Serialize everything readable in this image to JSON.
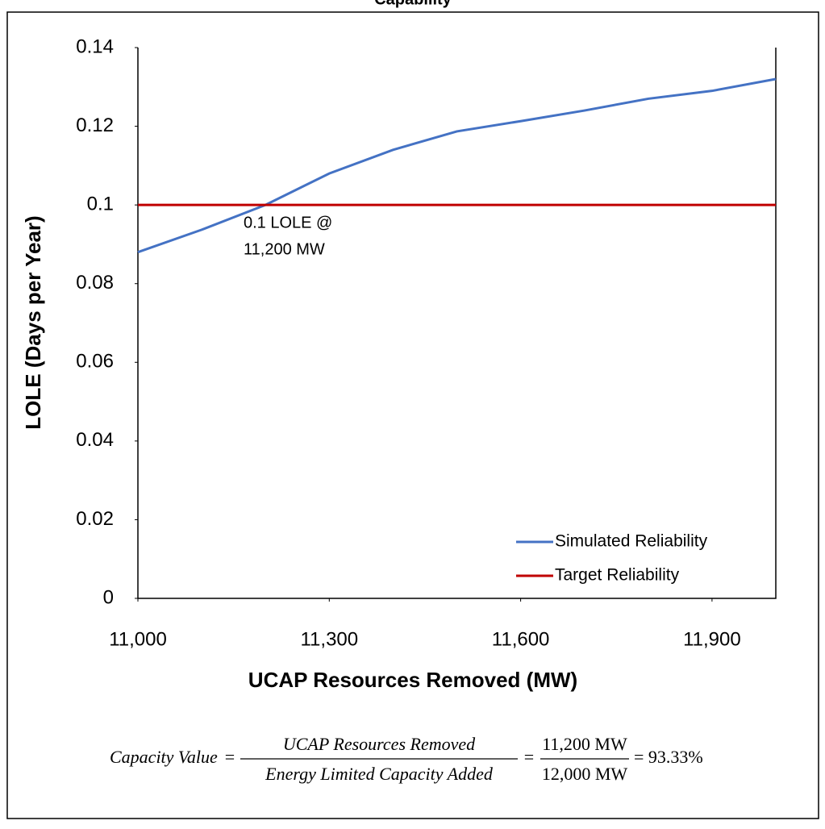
{
  "chart_data": {
    "type": "line",
    "title": "Capability",
    "x_label": "UCAP Resources Removed (MW)",
    "y_label": "LOLE (Days per Year)",
    "xlim": [
      11000,
      12000
    ],
    "xticks": [
      {
        "value": 11000,
        "label": "11,000"
      },
      {
        "value": 11300,
        "label": "11,300"
      },
      {
        "value": 11600,
        "label": "11,600"
      },
      {
        "value": 11900,
        "label": "11,900"
      }
    ],
    "ylim": [
      0,
      0.14
    ],
    "yticks": [
      0,
      0.02,
      0.04,
      0.06,
      0.08,
      0.1,
      0.12,
      0.14
    ],
    "legend": "bottom-right",
    "series": [
      {
        "name": "Simulated Reliability",
        "color": "#4472c4",
        "x": [
          11000,
          11100,
          11200,
          11300,
          11400,
          11500,
          11600,
          11700,
          11800,
          11900,
          12000
        ],
        "values": [
          0.088,
          0.0937,
          0.1,
          0.108,
          0.114,
          0.1187,
          0.1213,
          0.124,
          0.127,
          0.129,
          0.132
        ]
      },
      {
        "name": "Target Reliability",
        "color": "#c00000",
        "x": [
          11000,
          12000
        ],
        "values": [
          0.1,
          0.1
        ]
      }
    ],
    "annotation": [
      "0.1 LOLE @",
      "11,200 MW"
    ]
  },
  "formula": {
    "lhs": "Capacity Value",
    "eq1": "=",
    "numerator": "UCAP Resources Removed",
    "denominator": "Energy Limited Capacity Added",
    "eq2": "=",
    "value_numerator": "11,200 MW",
    "value_denominator": "12,000 MW",
    "result": "= 93.33%"
  }
}
